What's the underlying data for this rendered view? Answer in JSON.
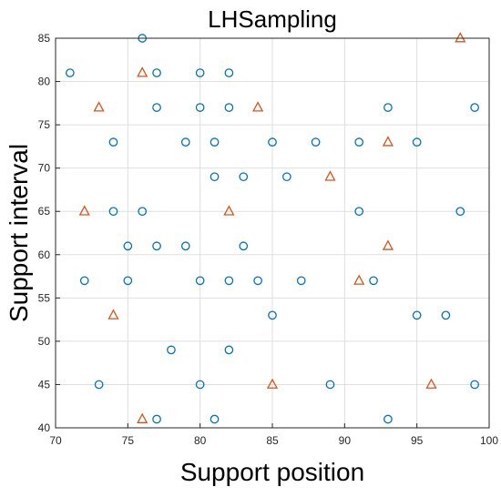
{
  "chart_data": {
    "type": "scatter",
    "title": "LHSampling",
    "xlabel": "Support position",
    "ylabel": "Support interval",
    "xlim": [
      70,
      100
    ],
    "ylim": [
      40,
      85
    ],
    "xticks": [
      "70",
      "75",
      "80",
      "85",
      "90",
      "95",
      "100"
    ],
    "yticks": [
      "40",
      "45",
      "50",
      "55",
      "60",
      "65",
      "70",
      "75",
      "80",
      "85"
    ],
    "grid": true,
    "series": [
      {
        "marker": "circle",
        "color": "#0072BD",
        "points": [
          [
            76,
            85
          ],
          [
            71,
            81
          ],
          [
            77,
            81
          ],
          [
            80,
            81
          ],
          [
            82,
            81
          ],
          [
            77,
            77
          ],
          [
            80,
            77
          ],
          [
            82,
            77
          ],
          [
            93,
            77
          ],
          [
            99,
            77
          ],
          [
            74,
            73
          ],
          [
            79,
            73
          ],
          [
            81,
            73
          ],
          [
            85,
            73
          ],
          [
            88,
            73
          ],
          [
            91,
            73
          ],
          [
            95,
            73
          ],
          [
            81,
            69
          ],
          [
            83,
            69
          ],
          [
            86,
            69
          ],
          [
            74,
            65
          ],
          [
            76,
            65
          ],
          [
            91,
            65
          ],
          [
            98,
            65
          ],
          [
            75,
            61
          ],
          [
            77,
            61
          ],
          [
            79,
            61
          ],
          [
            83,
            61
          ],
          [
            72,
            57
          ],
          [
            75,
            57
          ],
          [
            80,
            57
          ],
          [
            82,
            57
          ],
          [
            84,
            57
          ],
          [
            87,
            57
          ],
          [
            92,
            57
          ],
          [
            85,
            53
          ],
          [
            95,
            53
          ],
          [
            97,
            53
          ],
          [
            78,
            49
          ],
          [
            82,
            49
          ],
          [
            73,
            45
          ],
          [
            80,
            45
          ],
          [
            89,
            45
          ],
          [
            99,
            45
          ],
          [
            77,
            41
          ],
          [
            81,
            41
          ],
          [
            93,
            41
          ]
        ]
      },
      {
        "marker": "triangle",
        "color": "#D95319",
        "points": [
          [
            98,
            85
          ],
          [
            76,
            81
          ],
          [
            73,
            77
          ],
          [
            84,
            77
          ],
          [
            93,
            73
          ],
          [
            89,
            69
          ],
          [
            72,
            65
          ],
          [
            82,
            65
          ],
          [
            93,
            61
          ],
          [
            91,
            57
          ],
          [
            74,
            53
          ],
          [
            85,
            45
          ],
          [
            96,
            45
          ],
          [
            76,
            41
          ]
        ]
      }
    ]
  }
}
